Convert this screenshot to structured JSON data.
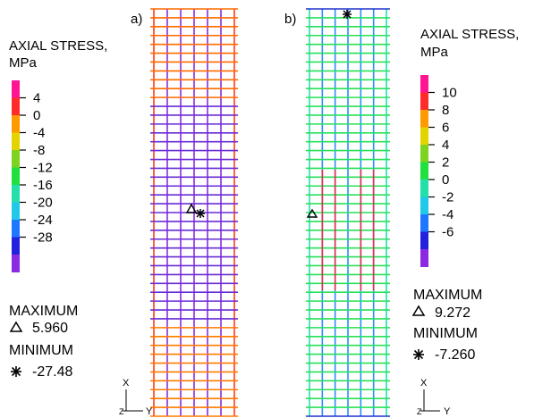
{
  "panels": [
    {
      "label": "a)",
      "legend_title_1": "AXIAL STRESS,",
      "legend_title_2": "MPa",
      "colorbar": {
        "colors": [
          "#ff1493",
          "#ff2a2a",
          "#ff9900",
          "#e3d400",
          "#7ed321",
          "#20e040",
          "#22e0a8",
          "#22c8e8",
          "#1e78ff",
          "#2222dd",
          "#8a2be2"
        ],
        "ticks": [
          "4",
          "0",
          "-4",
          "-8",
          "-12",
          "-16",
          "-20",
          "-24",
          "-28"
        ]
      },
      "max_label": "MAXIMUM",
      "max_value": "5.960",
      "min_label": "MINIMUM",
      "min_value": "-27.48",
      "axis_x": "X",
      "axis_y": "Y"
    },
    {
      "label": "b)",
      "legend_title_1": "AXIAL STRESS,",
      "legend_title_2": "MPa",
      "colorbar": {
        "colors": [
          "#ff1493",
          "#ff2a2a",
          "#ff9900",
          "#e3d400",
          "#7ed321",
          "#20e040",
          "#22e0a8",
          "#22c8e8",
          "#1e78ff",
          "#2222dd",
          "#8a2be2"
        ],
        "ticks": [
          "10",
          "8",
          "6",
          "4",
          "2",
          "0",
          "-2",
          "-4",
          "-6"
        ]
      },
      "max_label": "MAXIMUM",
      "max_value": "9.272",
      "min_label": "MINIMUM",
      "min_value": "-7.260",
      "axis_x": "X",
      "axis_y": "Y"
    }
  ],
  "symbols": {
    "maximum": "triangle-marker-icon",
    "minimum": "asterisk-marker-icon"
  },
  "grid_colors": {
    "a_horizontal_top": "#ff6a00",
    "a_horizontal_mid": "#6a2bd6",
    "a_horizontal_bottom": "#ff7a00",
    "a_vertical_edge": "#ff3a1a",
    "a_vertical_inner": "#8a2be2",
    "b_horizontal": "#27e05a",
    "b_vertical_edge": "#22e0b0",
    "b_vertical_inner": "#2a8cff",
    "b_stripe": "#e0304a",
    "b_end": "#2233cc"
  }
}
